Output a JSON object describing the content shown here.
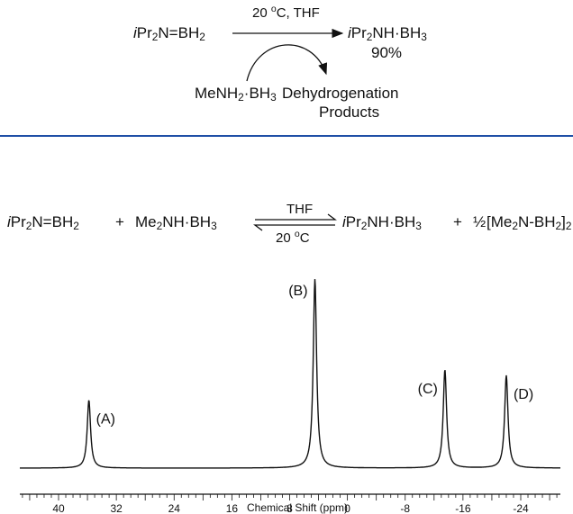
{
  "scheme_top": {
    "reactant": "iPr2N=BH2",
    "conditions": "20 °C, THF",
    "product": "iPr2NH·BH3",
    "yield": "90%",
    "coreactant": "MeNH2·BH3",
    "byproduct_line1": "Dehydrogenation",
    "byproduct_line2": "Products"
  },
  "equation": {
    "reactant1": "iPr2N=BH2",
    "plus1": "+",
    "reactant2": "Me2NH·BH3",
    "arrow_top": "THF",
    "arrow_bottom": "20 °C",
    "product1": "iPr2NH·BH3",
    "plus2": "+",
    "coefficient": "½",
    "product2": "[Me2N-BH2]2"
  },
  "chart_data": {
    "type": "line",
    "title": "",
    "xlabel": "Chemical Shift (ppm)",
    "ylabel": "",
    "xlim": [
      47,
      -33
    ],
    "x_ticks": [
      40,
      32,
      24,
      16,
      8,
      0,
      -8,
      -16,
      -24
    ],
    "x_tick_labels": [
      "40",
      "32",
      "24",
      "16",
      "8",
      "0",
      "-8",
      "-16",
      "-24"
    ],
    "x_reversed": true,
    "peaks": [
      {
        "label": "(A)",
        "shift": 35.8,
        "relative_height": 0.36
      },
      {
        "label": "(B)",
        "shift": 4.5,
        "relative_height": 1.0
      },
      {
        "label": "(C)",
        "shift": -13.5,
        "relative_height": 0.52
      },
      {
        "label": "(D)",
        "shift": -22.0,
        "relative_height": 0.49
      }
    ]
  }
}
